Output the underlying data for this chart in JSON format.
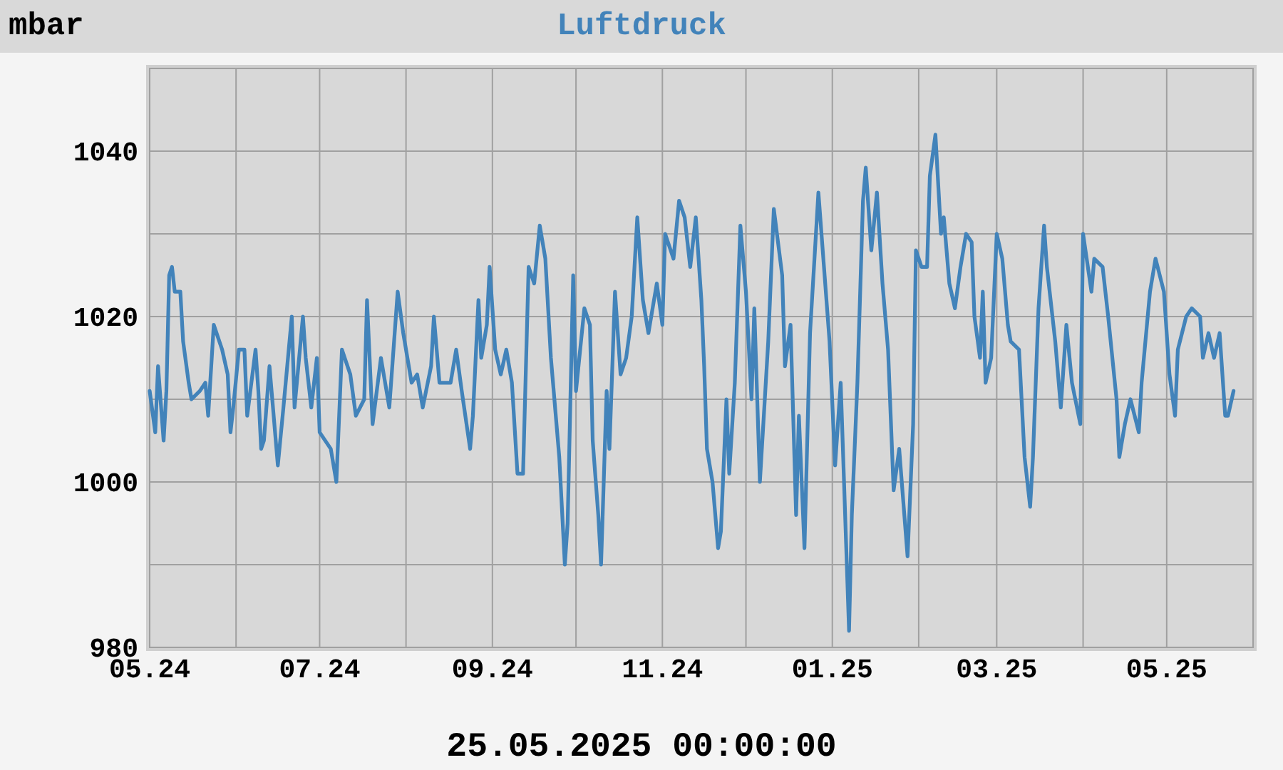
{
  "chart_data": {
    "type": "line",
    "title": "Luftdruck",
    "ylabel": "mbar",
    "annotations": [
      "25.05.2025 00:00:00"
    ],
    "xlim": [
      "2024-05-01",
      "2025-06-01"
    ],
    "xticks": [
      {
        "value": "2024-05-01",
        "label": "05.24"
      },
      {
        "value": "2024-06-01",
        "label": null
      },
      {
        "value": "2024-07-01",
        "label": "07.24"
      },
      {
        "value": "2024-08-01",
        "label": null
      },
      {
        "value": "2024-09-01",
        "label": "09.24"
      },
      {
        "value": "2024-10-01",
        "label": null
      },
      {
        "value": "2024-11-01",
        "label": "11.24"
      },
      {
        "value": "2024-12-01",
        "label": null
      },
      {
        "value": "2025-01-01",
        "label": "01.25"
      },
      {
        "value": "2025-02-01",
        "label": null
      },
      {
        "value": "2025-03-01",
        "label": "03.25"
      },
      {
        "value": "2025-04-01",
        "label": null
      },
      {
        "value": "2025-05-01",
        "label": "05.25"
      }
    ],
    "ylim": [
      980,
      1050
    ],
    "yticks": [
      980,
      {
        "value": 990,
        "label": null
      },
      1000,
      {
        "value": 1010,
        "label": null
      },
      1020,
      {
        "value": 1030,
        "label": null
      },
      1040,
      {
        "value": 1050,
        "label": null
      }
    ],
    "grid": true,
    "series": [
      {
        "color": "#4283ba",
        "x": [
          "2024-05-01",
          "2024-05-03",
          "2024-05-04",
          "2024-05-06",
          "2024-05-07",
          "2024-05-08",
          "2024-05-09",
          "2024-05-10",
          "2024-05-12",
          "2024-05-13",
          "2024-05-15",
          "2024-05-16",
          "2024-05-19",
          "2024-05-21",
          "2024-05-22",
          "2024-05-24",
          "2024-05-27",
          "2024-05-29",
          "2024-05-30",
          "2024-05-31",
          "2024-06-02",
          "2024-06-04",
          "2024-06-05",
          "2024-06-08",
          "2024-06-09",
          "2024-06-10",
          "2024-06-11",
          "2024-06-13",
          "2024-06-16",
          "2024-06-18",
          "2024-06-21",
          "2024-06-22",
          "2024-06-25",
          "2024-06-26",
          "2024-06-28",
          "2024-06-30",
          "2024-07-01",
          "2024-07-05",
          "2024-07-07",
          "2024-07-09",
          "2024-07-12",
          "2024-07-14",
          "2024-07-17",
          "2024-07-18",
          "2024-07-20",
          "2024-07-23",
          "2024-07-26",
          "2024-07-29",
          "2024-07-31",
          "2024-08-03",
          "2024-08-05",
          "2024-08-07",
          "2024-08-10",
          "2024-08-11",
          "2024-08-13",
          "2024-08-17",
          "2024-08-19",
          "2024-08-21",
          "2024-08-24",
          "2024-08-25",
          "2024-08-27",
          "2024-08-28",
          "2024-08-30",
          "2024-08-31",
          "2024-09-02",
          "2024-09-04",
          "2024-09-06",
          "2024-09-08",
          "2024-09-10",
          "2024-09-12",
          "2024-09-14",
          "2024-09-16",
          "2024-09-18",
          "2024-09-20",
          "2024-09-22",
          "2024-09-25",
          "2024-09-27",
          "2024-09-28",
          "2024-09-30",
          "2024-10-01",
          "2024-10-04",
          "2024-10-06",
          "2024-10-07",
          "2024-10-09",
          "2024-10-10",
          "2024-10-12",
          "2024-10-13",
          "2024-10-15",
          "2024-10-17",
          "2024-10-19",
          "2024-10-21",
          "2024-10-23",
          "2024-10-25",
          "2024-10-27",
          "2024-10-28",
          "2024-10-30",
          "2024-11-01",
          "2024-11-02",
          "2024-11-05",
          "2024-11-07",
          "2024-11-09",
          "2024-11-11",
          "2024-11-13",
          "2024-11-15",
          "2024-11-16",
          "2024-11-17",
          "2024-11-19",
          "2024-11-21",
          "2024-11-22",
          "2024-11-24",
          "2024-11-25",
          "2024-11-27",
          "2024-11-29",
          "2024-12-01",
          "2024-12-03",
          "2024-12-04",
          "2024-12-06",
          "2024-12-09",
          "2024-12-11",
          "2024-12-14",
          "2024-12-15",
          "2024-12-17",
          "2024-12-19",
          "2024-12-20",
          "2024-12-22",
          "2024-12-24",
          "2024-12-27",
          "2024-12-29",
          "2024-12-31",
          "2025-01-02",
          "2025-01-04",
          "2025-01-07",
          "2025-01-08",
          "2025-01-10",
          "2025-01-12",
          "2025-01-13",
          "2025-01-15",
          "2025-01-17",
          "2025-01-19",
          "2025-01-21",
          "2025-01-23",
          "2025-01-25",
          "2025-01-28",
          "2025-01-30",
          "2025-01-31",
          "2025-02-02",
          "2025-02-04",
          "2025-02-05",
          "2025-02-07",
          "2025-02-09",
          "2025-02-10",
          "2025-02-12",
          "2025-02-14",
          "2025-02-16",
          "2025-02-18",
          "2025-02-20",
          "2025-02-21",
          "2025-02-23",
          "2025-02-24",
          "2025-02-25",
          "2025-02-27",
          "2025-03-01",
          "2025-03-03",
          "2025-03-05",
          "2025-03-06",
          "2025-03-09",
          "2025-03-11",
          "2025-03-13",
          "2025-03-14",
          "2025-03-16",
          "2025-03-18",
          "2025-03-19",
          "2025-03-22",
          "2025-03-24",
          "2025-03-26",
          "2025-03-28",
          "2025-03-31",
          "2025-04-01",
          "2025-04-04",
          "2025-04-05",
          "2025-04-08",
          "2025-04-10",
          "2025-04-13",
          "2025-04-14",
          "2025-04-16",
          "2025-04-18",
          "2025-04-21",
          "2025-04-22",
          "2025-04-25",
          "2025-04-27",
          "2025-04-30",
          "2025-05-02",
          "2025-05-04",
          "2025-05-05",
          "2025-05-08",
          "2025-05-10",
          "2025-05-13",
          "2025-05-14",
          "2025-05-16",
          "2025-05-18",
          "2025-05-20",
          "2025-05-22",
          "2025-05-23",
          "2025-05-25"
        ],
        "values": [
          1011,
          1006,
          1014,
          1005,
          1011,
          1025,
          1026,
          1023,
          1023,
          1017,
          1012,
          1010,
          1011,
          1012,
          1008,
          1019,
          1016,
          1013,
          1006,
          1009,
          1016,
          1016,
          1008,
          1016,
          1011,
          1004,
          1005,
          1014,
          1002,
          1009,
          1020,
          1009,
          1020,
          1015,
          1009,
          1015,
          1006,
          1004,
          1000,
          1016,
          1013,
          1008,
          1010,
          1022,
          1007,
          1015,
          1009,
          1023,
          1018,
          1012,
          1013,
          1009,
          1014,
          1020,
          1012,
          1012,
          1016,
          1011,
          1004,
          1008,
          1022,
          1015,
          1019,
          1026,
          1016,
          1013,
          1016,
          1012,
          1001,
          1001,
          1026,
          1024,
          1031,
          1027,
          1015,
          1003,
          990,
          995,
          1025,
          1011,
          1021,
          1019,
          1005,
          996,
          990,
          1011,
          1004,
          1023,
          1013,
          1015,
          1020,
          1032,
          1022,
          1018,
          1020,
          1024,
          1019,
          1030,
          1027,
          1034,
          1032,
          1026,
          1032,
          1022,
          1014,
          1004,
          1000,
          992,
          994,
          1010,
          1001,
          1012,
          1031,
          1023,
          1010,
          1021,
          1000,
          1017,
          1033,
          1025,
          1014,
          1019,
          996,
          1008,
          992,
          1018,
          1035,
          1026,
          1017,
          1002,
          1012,
          982,
          996,
          1012,
          1034,
          1038,
          1028,
          1035,
          1024,
          1016,
          999,
          1004,
          991,
          1007,
          1028,
          1026,
          1026,
          1037,
          1042,
          1030,
          1032,
          1024,
          1021,
          1026,
          1030,
          1029,
          1020,
          1015,
          1023,
          1012,
          1015,
          1030,
          1027,
          1019,
          1017,
          1016,
          1003,
          997,
          1003,
          1021,
          1031,
          1026,
          1017,
          1009,
          1019,
          1012,
          1007,
          1030,
          1023,
          1027,
          1026,
          1020,
          1010,
          1003,
          1007,
          1010,
          1006,
          1012,
          1023,
          1027,
          1023,
          1013,
          1008,
          1016,
          1020,
          1021,
          1020,
          1015,
          1018,
          1015,
          1018,
          1008,
          1008,
          1011
        ]
      }
    ]
  }
}
